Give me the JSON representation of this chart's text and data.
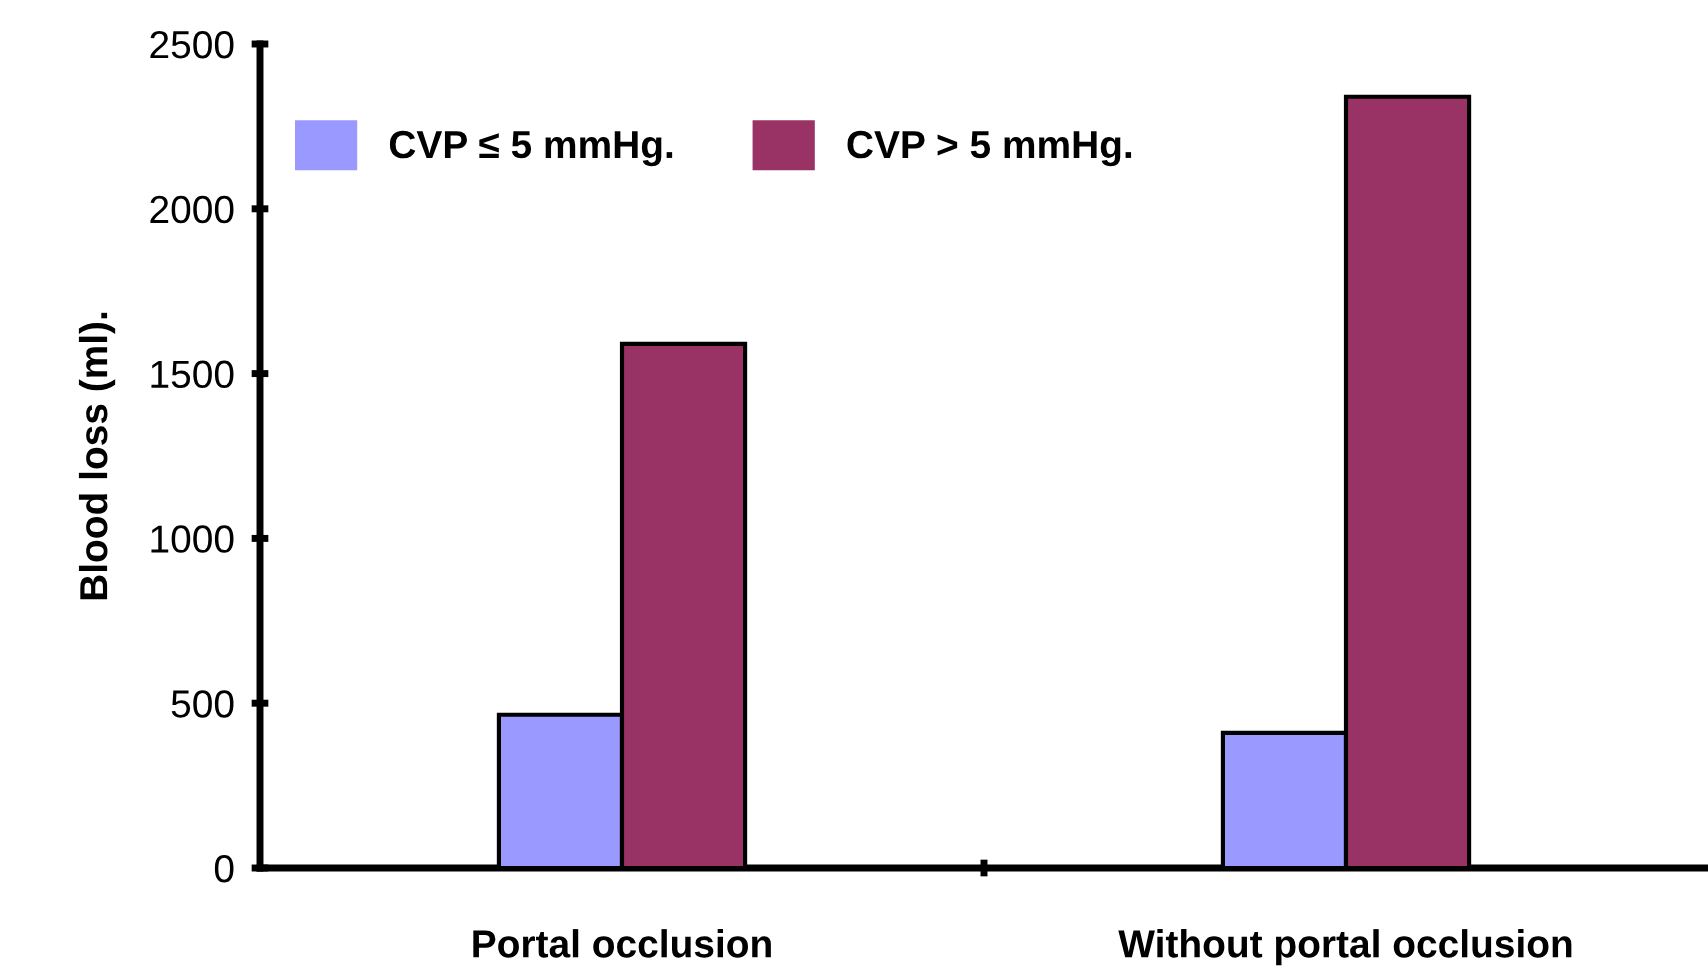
{
  "chart_data": {
    "type": "bar",
    "ylabel": "Blood loss (ml).",
    "categories": [
      "Portal occlusion",
      "Without portal occlusion"
    ],
    "series": [
      {
        "name": "CVP ≤ 5 mmHg.",
        "color": "#9999ff",
        "values": [
          465,
          410
        ]
      },
      {
        "name": "CVP > 5 mmHg.",
        "color": "#993366",
        "values": [
          1590,
          2340
        ]
      }
    ],
    "ylim": [
      0,
      2500
    ],
    "yticks": [
      0,
      500,
      1000,
      1500,
      2000,
      2500
    ],
    "grid": false,
    "legend": "top left"
  }
}
